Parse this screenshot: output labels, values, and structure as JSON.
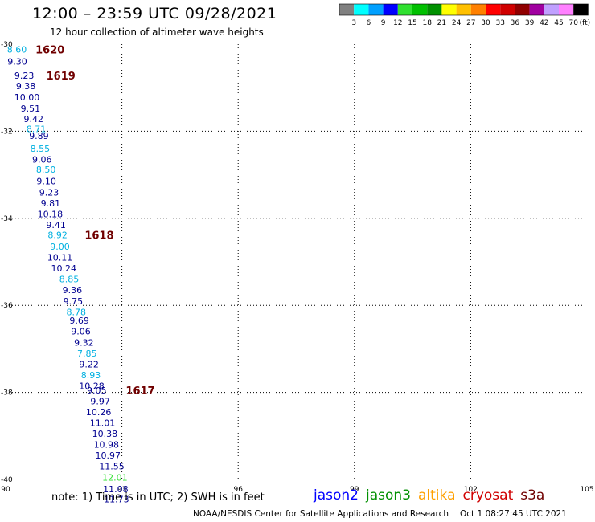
{
  "header": {
    "title": "12:00 – 23:59 UTC 09/28/2021",
    "subtitle": "12 hour collection of altimeter wave heights"
  },
  "legend": {
    "unit": "(ft)",
    "colors": [
      "#808080",
      "#00ffff",
      "#00a0ff",
      "#0000ff",
      "#30e030",
      "#00c000",
      "#009000",
      "#ffff00",
      "#ffc000",
      "#ff8000",
      "#ff0000",
      "#d00000",
      "#900000",
      "#a000a0",
      "#c0a0ff",
      "#ff80ff",
      "#000000"
    ],
    "labels": [
      "3",
      "6",
      "9",
      "12",
      "15",
      "18",
      "21",
      "24",
      "27",
      "30",
      "33",
      "36",
      "39",
      "42",
      "45",
      "70"
    ]
  },
  "chart_data": {
    "type": "scatter",
    "xlim": [
      90,
      105
    ],
    "ylim": [
      -40,
      -30
    ],
    "x_ticks": [
      "90",
      "93",
      "96",
      "99",
      "102",
      "105"
    ],
    "y_ticks": [
      "-30",
      "-32",
      "-34",
      "-36",
      "-38",
      "-40"
    ],
    "grid": true,
    "points": [
      {
        "lon": 90.29,
        "lat": -30.12,
        "label": "8.60",
        "color": "#00b0e0"
      },
      {
        "lon": 90.3,
        "lat": -30.4,
        "label": "9.30",
        "color": "#000090"
      },
      {
        "lon": 90.48,
        "lat": -30.72,
        "label": "9.23",
        "color": "#000090"
      },
      {
        "lon": 90.52,
        "lat": -30.96,
        "label": "9.38",
        "color": "#000090"
      },
      {
        "lon": 90.55,
        "lat": -31.22,
        "label": "10.00",
        "color": "#000090"
      },
      {
        "lon": 90.64,
        "lat": -31.48,
        "label": "9.51",
        "color": "#000090"
      },
      {
        "lon": 90.72,
        "lat": -31.72,
        "label": "9.42",
        "color": "#000090"
      },
      {
        "lon": 90.79,
        "lat": -31.95,
        "label": "8.71",
        "color": "#00b0e0"
      },
      {
        "lon": 90.86,
        "lat": -32.1,
        "label": "9.89",
        "color": "#000090"
      },
      {
        "lon": 90.89,
        "lat": -32.4,
        "label": "8.55",
        "color": "#00b0e0"
      },
      {
        "lon": 90.94,
        "lat": -32.65,
        "label": "9.06",
        "color": "#000090"
      },
      {
        "lon": 91.04,
        "lat": -32.88,
        "label": "8.50",
        "color": "#00b0e0"
      },
      {
        "lon": 91.05,
        "lat": -33.15,
        "label": "9.10",
        "color": "#000090"
      },
      {
        "lon": 91.12,
        "lat": -33.4,
        "label": "9.23",
        "color": "#000090"
      },
      {
        "lon": 91.16,
        "lat": -33.65,
        "label": "9.81",
        "color": "#000090"
      },
      {
        "lon": 91.15,
        "lat": -33.9,
        "label": "10.18",
        "color": "#000090"
      },
      {
        "lon": 91.3,
        "lat": -34.15,
        "label": "9.41",
        "color": "#000090"
      },
      {
        "lon": 91.34,
        "lat": -34.38,
        "label": "8.92",
        "color": "#00b0e0"
      },
      {
        "lon": 91.4,
        "lat": -34.65,
        "label": "9.00",
        "color": "#00b0e0"
      },
      {
        "lon": 91.4,
        "lat": -34.9,
        "label": "10.11",
        "color": "#000090"
      },
      {
        "lon": 91.5,
        "lat": -35.15,
        "label": "10.24",
        "color": "#000090"
      },
      {
        "lon": 91.64,
        "lat": -35.4,
        "label": "8.85",
        "color": "#00b0e0"
      },
      {
        "lon": 91.72,
        "lat": -35.65,
        "label": "9.36",
        "color": "#000090"
      },
      {
        "lon": 91.74,
        "lat": -35.9,
        "label": "9.75",
        "color": "#000090"
      },
      {
        "lon": 91.82,
        "lat": -36.15,
        "label": "8.78",
        "color": "#00b0e0"
      },
      {
        "lon": 91.9,
        "lat": -36.35,
        "label": "9.69",
        "color": "#000090"
      },
      {
        "lon": 91.94,
        "lat": -36.6,
        "label": "9.06",
        "color": "#000090"
      },
      {
        "lon": 92.02,
        "lat": -36.85,
        "label": "9.32",
        "color": "#000090"
      },
      {
        "lon": 92.1,
        "lat": -37.1,
        "label": "7.85",
        "color": "#00b0e0"
      },
      {
        "lon": 92.15,
        "lat": -37.35,
        "label": "9.22",
        "color": "#000090"
      },
      {
        "lon": 92.2,
        "lat": -37.6,
        "label": "8.93",
        "color": "#00b0e0"
      },
      {
        "lon": 92.22,
        "lat": -37.85,
        "label": "10.28",
        "color": "#000090"
      },
      {
        "lon": 92.35,
        "lat": -37.95,
        "label": "9.05",
        "color": "#000090"
      },
      {
        "lon": 92.44,
        "lat": -38.2,
        "label": "9.97",
        "color": "#000090"
      },
      {
        "lon": 92.4,
        "lat": -38.45,
        "label": "10.26",
        "color": "#000090"
      },
      {
        "lon": 92.5,
        "lat": -38.7,
        "label": "11.01",
        "color": "#000090"
      },
      {
        "lon": 92.56,
        "lat": -38.95,
        "label": "10.38",
        "color": "#000090"
      },
      {
        "lon": 92.6,
        "lat": -39.2,
        "label": "10.98",
        "color": "#000090"
      },
      {
        "lon": 92.64,
        "lat": -39.45,
        "label": "10.97",
        "color": "#000090"
      },
      {
        "lon": 92.74,
        "lat": -39.7,
        "label": "11.55",
        "color": "#000090"
      },
      {
        "lon": 92.82,
        "lat": -39.95,
        "label": "12.01",
        "color": "#30e030"
      },
      {
        "lon": 92.84,
        "lat": -40.22,
        "label": "11.08",
        "color": "#000090"
      },
      {
        "lon": 92.86,
        "lat": -40.45,
        "label": "11.73",
        "color": "#000090"
      }
    ],
    "time_labels": [
      {
        "lon": 90.77,
        "lat": -30.12,
        "label": "1620"
      },
      {
        "lon": 91.05,
        "lat": -30.72,
        "label": "1619"
      },
      {
        "lon": 92.04,
        "lat": -34.38,
        "label": "1618"
      },
      {
        "lon": 93.1,
        "lat": -37.95,
        "label": "1617"
      }
    ]
  },
  "footer": {
    "note": "note:  1) Time is in UTC;  2) SWH is in feet",
    "satellites": [
      {
        "name": "jason2",
        "color": "#0000ff"
      },
      {
        "name": "jason3",
        "color": "#009000"
      },
      {
        "name": "altika",
        "color": "#ffa000"
      },
      {
        "name": "cryosat",
        "color": "#d00000"
      },
      {
        "name": "s3a",
        "color": "#700000"
      }
    ],
    "credit": "NOAA/NESDIS Center for Satellite Applications and Research",
    "timestamp": "Oct  1 08:27:45 UTC 2021"
  }
}
